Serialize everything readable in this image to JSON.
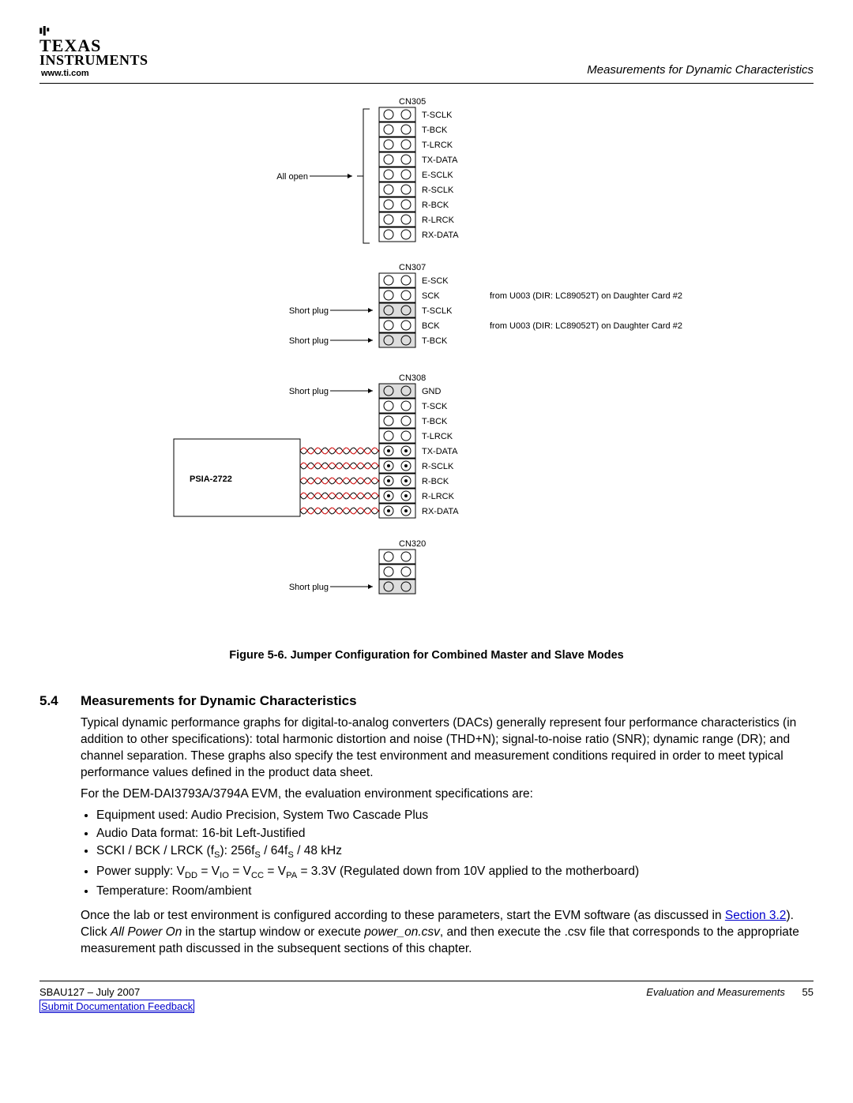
{
  "header": {
    "brand_line1": "TEXAS",
    "brand_line2": "INSTRUMENTS",
    "url": "www.ti.com",
    "right": "Measurements for Dynamic Characteristics"
  },
  "diagram": {
    "cn305": {
      "header": "CN305",
      "left_note": "All open",
      "rows": [
        "T-SCLK",
        "T-BCK",
        "T-LRCK",
        "TX-DATA",
        "E-SCLK",
        "R-SCLK",
        "R-BCK",
        "R-LRCK",
        "RX-DATA"
      ]
    },
    "cn307": {
      "header": "CN307",
      "rows": [
        {
          "left": "",
          "right": "E-SCK",
          "far": ""
        },
        {
          "left": "",
          "right": "SCK",
          "far": "from U003 (DIR: LC89052T) on Daughter Card #2"
        },
        {
          "left": "Short plug",
          "right": "T-SCLK",
          "far": ""
        },
        {
          "left": "",
          "right": "BCK",
          "far": "from U003 (DIR: LC89052T) on Daughter Card #2"
        },
        {
          "left": "Short plug",
          "right": "T-BCK",
          "far": ""
        }
      ]
    },
    "cn308": {
      "header": "CN308",
      "box_label": "PSIA-2722",
      "rows": [
        {
          "left": "Short plug",
          "right": "GND",
          "wire": false
        },
        {
          "left": "",
          "right": "T-SCK",
          "wire": false
        },
        {
          "left": "",
          "right": "T-BCK",
          "wire": false
        },
        {
          "left": "",
          "right": "T-LRCK",
          "wire": false
        },
        {
          "left": "",
          "right": "TX-DATA",
          "wire": true
        },
        {
          "left": "",
          "right": "R-SCLK",
          "wire": true
        },
        {
          "left": "",
          "right": "R-BCK",
          "wire": true
        },
        {
          "left": "",
          "right": "R-LRCK",
          "wire": true
        },
        {
          "left": "",
          "right": "RX-DATA",
          "wire": true
        }
      ]
    },
    "cn320": {
      "header": "CN320",
      "rows": [
        {
          "left": ""
        },
        {
          "left": ""
        },
        {
          "left": "Short plug"
        }
      ]
    }
  },
  "figure_caption": "Figure 5-6. Jumper Configuration for Combined Master and Slave Modes",
  "section": {
    "num": "5.4",
    "title": "Measurements for Dynamic Characteristics",
    "para1": "Typical dynamic performance graphs for digital-to-analog converters (DACs) generally represent four performance characteristics (in addition to other specifications): total harmonic distortion and noise (THD+N); signal-to-noise ratio (SNR); dynamic range (DR); and channel separation. These graphs also specify the test environment and measurement conditions required in order to meet typical performance values defined in the product data sheet.",
    "para2": "For the DEM-DAI3793A/3794A EVM, the evaluation environment specifications are:",
    "bullets": {
      "b1": "Equipment used: Audio Precision, System Two Cascade Plus",
      "b2": "Audio Data format: 16-bit Left-Justified",
      "b3_pre": "SCKI / BCK / LRCK (f",
      "b3_s": "S",
      "b3_mid1": "): 256f",
      "b3_mid2": " / 64f",
      "b3_post": " / 48 kHz",
      "b4_pre": "Power supply: V",
      "b4_dd": "DD",
      "b4_eq": " = V",
      "b4_io": "IO",
      "b4_cc": "CC",
      "b4_pa": "PA",
      "b4_post": " = 3.3V (Regulated down from 10V applied to the motherboard)",
      "b5": "Temperature: Room/ambient"
    },
    "para3_a": "Once the lab or test environment is configured according to these parameters, start the EVM software (as discussed in ",
    "para3_link": "Section 3.2",
    "para3_b": "). Click ",
    "para3_ital1": "All Power On",
    "para3_c": " in the startup window or execute ",
    "para3_ital2": "power_on.csv",
    "para3_d": ", and then execute the .csv file that corresponds to the appropriate measurement path discussed in the subsequent sections of this chapter."
  },
  "footer": {
    "doc": "SBAU127 – July 2007",
    "feedback": "Submit Documentation Feedback",
    "chapter": "Evaluation and Measurements",
    "page": "55"
  },
  "colors": {
    "link": "#0000cc",
    "wire_red": "#cc0000"
  }
}
